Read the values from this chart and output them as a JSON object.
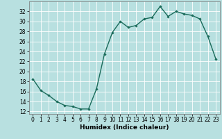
{
  "x": [
    0,
    1,
    2,
    3,
    4,
    5,
    6,
    7,
    8,
    9,
    10,
    11,
    12,
    13,
    14,
    15,
    16,
    17,
    18,
    19,
    20,
    21,
    22,
    23
  ],
  "y": [
    18.5,
    16.2,
    15.2,
    14.0,
    13.2,
    13.0,
    12.5,
    12.5,
    16.5,
    23.5,
    27.8,
    30.0,
    28.8,
    29.2,
    30.5,
    30.8,
    33.0,
    31.0,
    32.0,
    31.5,
    31.2,
    30.5,
    27.0,
    22.5
  ],
  "line_color": "#1a6b5a",
  "marker": "D",
  "marker_size": 1.8,
  "bg_color": "#b8e0e0",
  "grid_color": "#ffffff",
  "xlabel": "Humidex (Indice chaleur)",
  "xlabel_fontsize": 6.5,
  "xlim": [
    -0.5,
    23.5
  ],
  "ylim": [
    11.5,
    34
  ],
  "yticks": [
    12,
    14,
    16,
    18,
    20,
    22,
    24,
    26,
    28,
    30,
    32
  ],
  "xticks": [
    0,
    1,
    2,
    3,
    4,
    5,
    6,
    7,
    8,
    9,
    10,
    11,
    12,
    13,
    14,
    15,
    16,
    17,
    18,
    19,
    20,
    21,
    22,
    23
  ],
  "tick_fontsize": 5.5,
  "line_width": 1.0
}
